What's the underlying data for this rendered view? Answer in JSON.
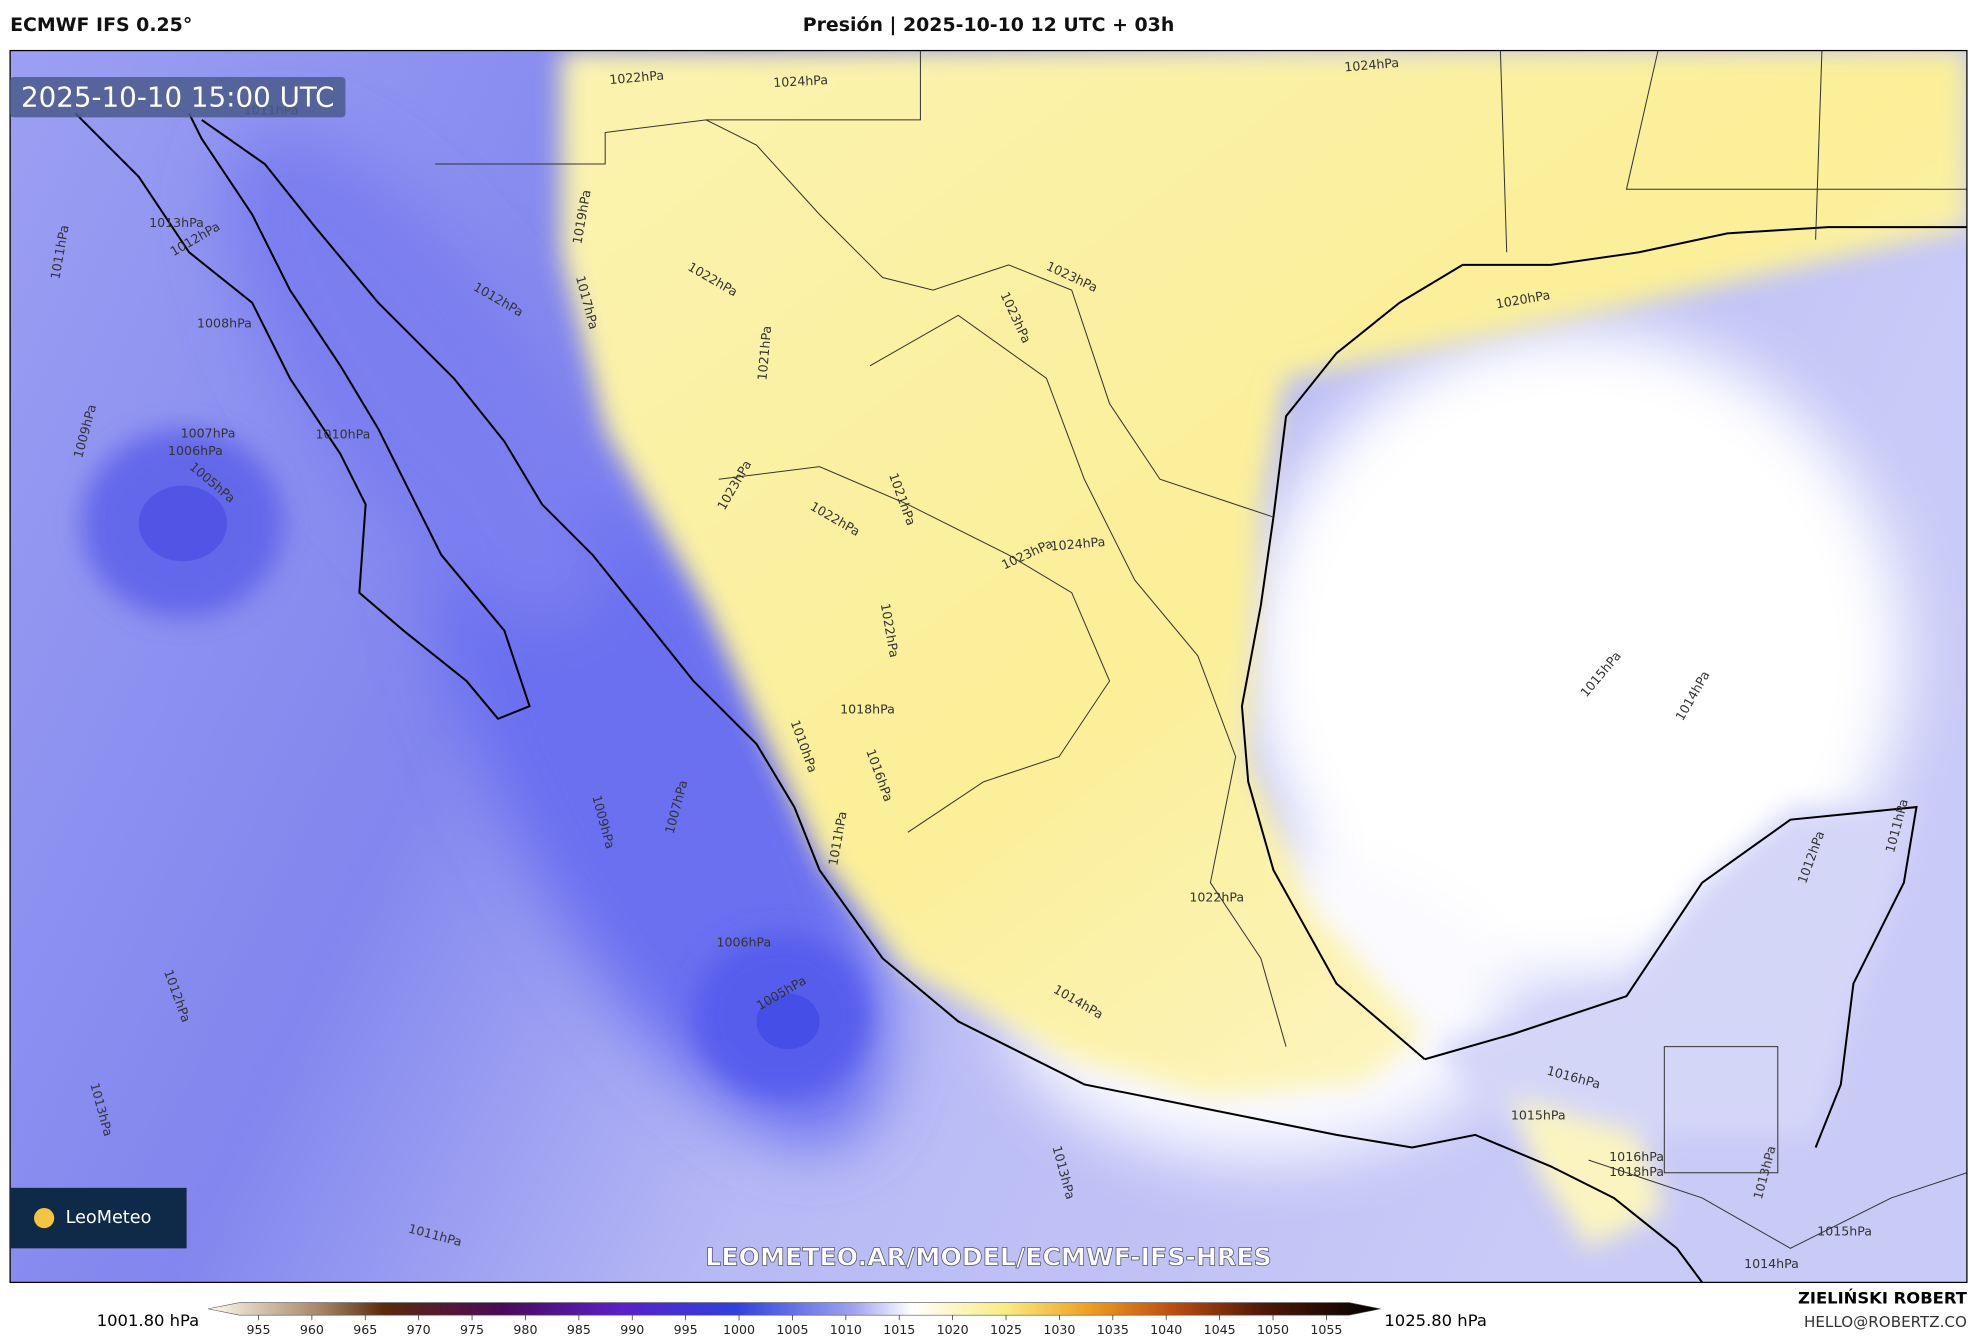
{
  "header": {
    "model": "ECMWF IFS 0.25°",
    "title": "Presión | 2025-10-10 12 UTC + 03h"
  },
  "map": {
    "timestamp": "2025-10-10 15:00 UTC",
    "logo": "LeoMeteo",
    "watermark": "LEOMETEO.AR/MODEL/ECMWF-IFS-HRES",
    "contour_labels": [
      "1022hPa",
      "1024hPa",
      "1024hPa",
      "1011hPa",
      "1013hPa",
      "1012hPa",
      "1011hPa",
      "1008hPa",
      "1009hPa",
      "1007hPa",
      "1006hPa",
      "1005hPa",
      "1010hPa",
      "1012hPa",
      "1019hPa",
      "1017hPa",
      "1022hPa",
      "1021hPa",
      "1023hPa",
      "1023hPa",
      "1020hPa",
      "1023hPa",
      "1022hPa",
      "1021hPa",
      "1023hPa",
      "1024hPa",
      "1022hPa",
      "1018hPa",
      "1010hPa",
      "1016hPa",
      "1011hPa",
      "1009hPa",
      "1007hPa",
      "1006hPa",
      "1005hPa",
      "1012hPa",
      "1013hPa",
      "1011hPa",
      "1013hPa",
      "1014hPa",
      "1022hPa",
      "1015hPa",
      "1014hPa",
      "1016hPa",
      "1015hPa",
      "1012hPa",
      "1011hPa",
      "1013hPa",
      "1015hPa",
      "1014hPa",
      "1016hPa",
      "1018hPa"
    ]
  },
  "colorbar": {
    "min_label": "1001.80 hPa",
    "max_label": "1025.80 hPa",
    "ticks": [
      955,
      960,
      965,
      970,
      975,
      980,
      985,
      990,
      995,
      1000,
      1005,
      1010,
      1015,
      1020,
      1025,
      1030,
      1035,
      1040,
      1045,
      1050,
      1055
    ]
  },
  "credit": {
    "author": "ZIELIŃSKI ROBERT",
    "email": "HELLO@ROBERTZ.CO"
  }
}
